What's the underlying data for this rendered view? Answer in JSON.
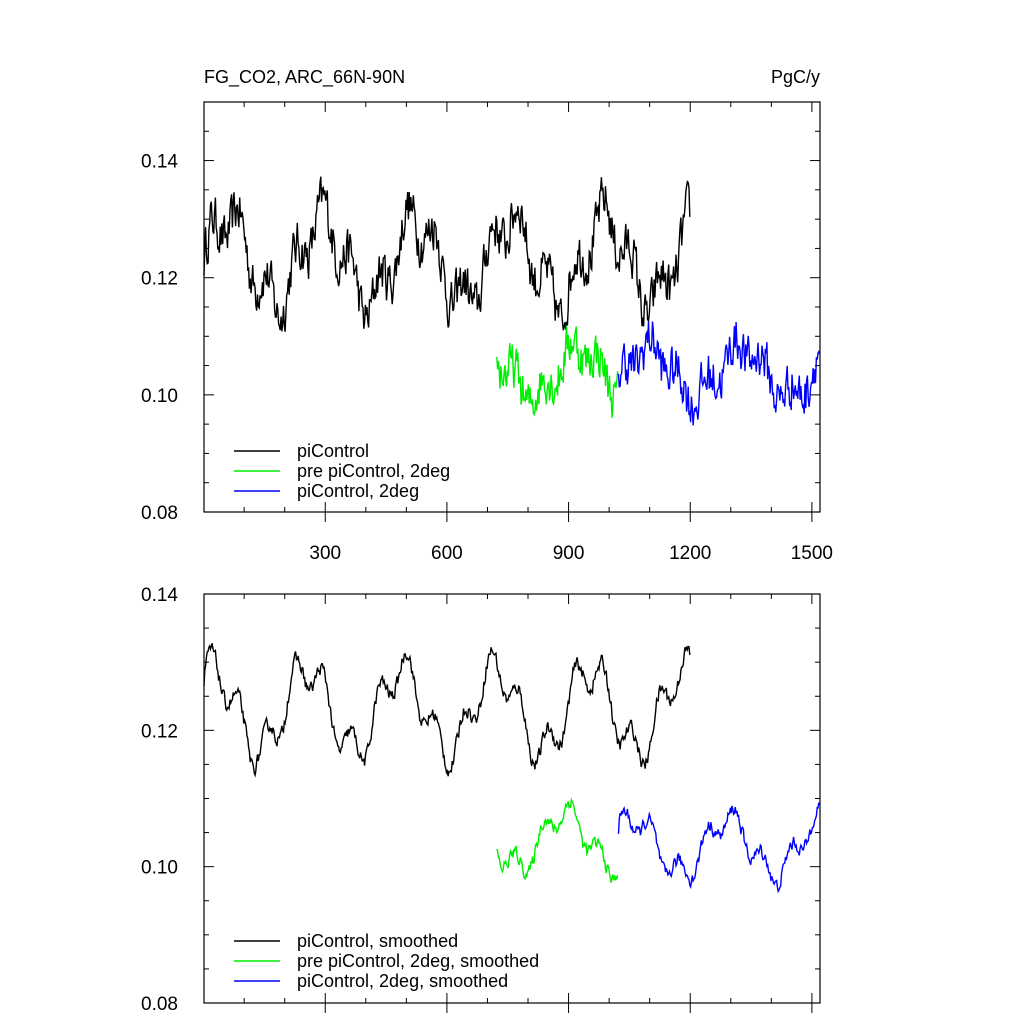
{
  "header": {
    "title_left": "FG_CO2, ARC_66N-90N",
    "title_right": "PgC/y"
  },
  "chart_data": [
    {
      "type": "line",
      "name": "top-panel",
      "xlim": [
        1,
        1520
      ],
      "ylim": [
        0.08,
        0.15
      ],
      "x_ticks": [
        300,
        600,
        900,
        1200,
        1500
      ],
      "x_tick_labels": [
        "300",
        "600",
        "900",
        "1200",
        "1500"
      ],
      "y_ticks": [
        0.08,
        0.1,
        0.12,
        0.14
      ],
      "y_tick_labels": [
        "0.08",
        "0.10",
        "0.12",
        "0.14"
      ],
      "legend_position": "bottom-left",
      "series": [
        {
          "name": "piControl",
          "color": "#000000",
          "x_start": 1,
          "x_end": 1200,
          "mean": 0.123,
          "amplitude": 0.007,
          "noise": 0.006
        },
        {
          "name": "pre piControl, 2deg",
          "color": "#00ee00",
          "x_start": 723,
          "x_end": 1022,
          "mean": 0.104,
          "amplitude": 0.004,
          "noise": 0.006
        },
        {
          "name": "piControl, 2deg",
          "color": "#0000ff",
          "x_start": 1023,
          "x_end": 1520,
          "mean": 0.104,
          "amplitude": 0.004,
          "noise": 0.006
        }
      ]
    },
    {
      "type": "line",
      "name": "bottom-panel",
      "xlim": [
        1,
        1520
      ],
      "ylim": [
        0.08,
        0.14
      ],
      "x_ticks": [
        300,
        600,
        900,
        1200,
        1500
      ],
      "x_tick_labels": [],
      "y_ticks": [
        0.08,
        0.1,
        0.12,
        0.14
      ],
      "y_tick_labels": [
        "0.08",
        "0.10",
        "0.12",
        "0.14"
      ],
      "legend_position": "bottom-left",
      "series": [
        {
          "name": "piControl, smoothed",
          "color": "#000000",
          "x_start": 1,
          "x_end": 1200,
          "mean": 0.123,
          "amplitude": 0.006,
          "noise": 0.0015
        },
        {
          "name": "pre piControl, 2deg, smoothed",
          "color": "#00ee00",
          "x_start": 723,
          "x_end": 1022,
          "mean": 0.104,
          "amplitude": 0.004,
          "noise": 0.0015
        },
        {
          "name": "piControl, 2deg, smoothed",
          "color": "#0000ff",
          "x_start": 1023,
          "x_end": 1520,
          "mean": 0.103,
          "amplitude": 0.004,
          "noise": 0.0015
        }
      ]
    }
  ]
}
